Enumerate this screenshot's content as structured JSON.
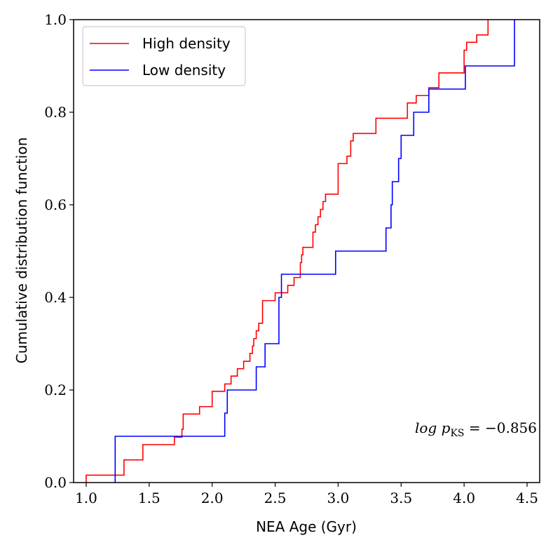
{
  "chart_data": {
    "type": "line",
    "step": "post",
    "xlabel": "NEA Age (Gyr)",
    "ylabel": "Cumulative distribution function",
    "xlim": [
      0.9,
      4.6
    ],
    "ylim": [
      0.0,
      1.0
    ],
    "xticks": [
      1.0,
      1.5,
      2.0,
      2.5,
      3.0,
      3.5,
      4.0,
      4.5
    ],
    "xtick_labels": [
      "1.0",
      "1.5",
      "2.0",
      "2.5",
      "3.0",
      "3.5",
      "4.0",
      "4.5"
    ],
    "yticks": [
      0.0,
      0.2,
      0.4,
      0.6,
      0.8,
      1.0
    ],
    "ytick_labels": [
      "0.0",
      "0.2",
      "0.4",
      "0.6",
      "0.8",
      "1.0"
    ],
    "grid": false,
    "legend_position": "top-left",
    "annotation": {
      "prefix": "log p",
      "subscript": "KS",
      "suffix": " = −0.856"
    },
    "series": [
      {
        "name": "High density",
        "color": "#ff0000",
        "x": [
          1.0,
          1.3,
          1.45,
          1.7,
          1.76,
          1.77,
          1.9,
          2.0,
          2.1,
          2.15,
          2.2,
          2.25,
          2.3,
          2.32,
          2.33,
          2.35,
          2.37,
          2.4,
          2.5,
          2.6,
          2.65,
          2.7,
          2.71,
          2.72,
          2.8,
          2.82,
          2.84,
          2.86,
          2.88,
          2.9,
          3.0,
          3.07,
          3.1,
          3.12,
          3.3,
          3.55,
          3.62,
          3.72,
          3.8,
          4.0,
          4.02,
          4.1,
          4.19
        ],
        "y": [
          0.016,
          0.049,
          0.082,
          0.098,
          0.115,
          0.148,
          0.164,
          0.197,
          0.213,
          0.23,
          0.246,
          0.262,
          0.279,
          0.295,
          0.311,
          0.328,
          0.344,
          0.393,
          0.41,
          0.426,
          0.443,
          0.475,
          0.492,
          0.508,
          0.541,
          0.557,
          0.574,
          0.59,
          0.607,
          0.623,
          0.689,
          0.705,
          0.738,
          0.754,
          0.787,
          0.82,
          0.836,
          0.853,
          0.885,
          0.934,
          0.951,
          0.967,
          1.0
        ]
      },
      {
        "name": "Low density",
        "color": "#0000ff",
        "x": [
          1.23,
          2.1,
          2.12,
          2.35,
          2.42,
          2.53,
          2.55,
          2.98,
          3.38,
          3.42,
          3.43,
          3.48,
          3.5,
          3.6,
          3.72,
          4.01,
          4.4
        ],
        "y": [
          0.1,
          0.15,
          0.2,
          0.25,
          0.3,
          0.4,
          0.45,
          0.5,
          0.55,
          0.6,
          0.65,
          0.7,
          0.75,
          0.8,
          0.85,
          0.9,
          1.0
        ]
      }
    ]
  }
}
